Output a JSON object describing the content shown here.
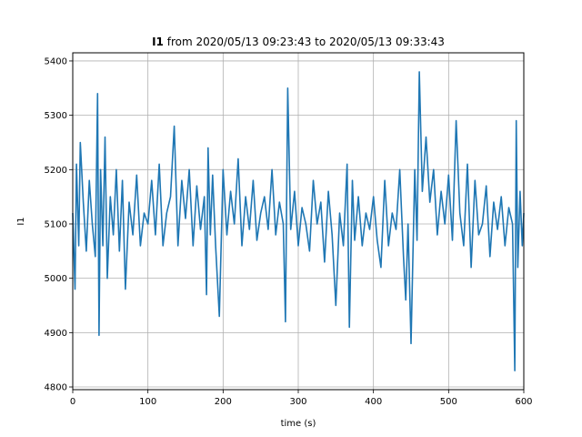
{
  "chart_data": {
    "type": "line",
    "title_bold": "I1",
    "title_rest": " from 2020/05/13 09:23:43 to 2020/05/13 09:33:43",
    "xlabel": "time (s)",
    "ylabel": "I1",
    "xlim": [
      0,
      600
    ],
    "ylim": [
      4795,
      5415
    ],
    "xticks": [
      0,
      100,
      200,
      300,
      400,
      500,
      600
    ],
    "yticks": [
      4800,
      4900,
      5000,
      5100,
      5200,
      5300,
      5400
    ],
    "grid": true,
    "line_color": "#1f77b4",
    "series": [
      {
        "x": [
          0,
          3,
          5,
          8,
          10,
          14,
          18,
          22,
          26,
          30,
          33,
          35,
          37,
          40,
          43,
          46,
          50,
          54,
          58,
          62,
          66,
          70,
          75,
          80,
          85,
          90,
          95,
          100,
          105,
          110,
          115,
          120,
          125,
          130,
          135,
          140,
          145,
          150,
          155,
          160,
          165,
          170,
          175,
          178,
          180,
          183,
          186,
          190,
          195,
          200,
          205,
          210,
          215,
          220,
          225,
          230,
          235,
          240,
          245,
          250,
          255,
          260,
          265,
          270,
          275,
          280,
          283,
          286,
          290,
          295,
          300,
          305,
          310,
          315,
          320,
          325,
          330,
          335,
          340,
          345,
          350,
          355,
          360,
          365,
          368,
          372,
          375,
          380,
          385,
          390,
          395,
          400,
          405,
          410,
          415,
          420,
          425,
          430,
          435,
          440,
          443,
          446,
          450,
          455,
          458,
          461,
          465,
          470,
          475,
          480,
          485,
          490,
          495,
          500,
          505,
          510,
          515,
          520,
          525,
          530,
          535,
          540,
          545,
          550,
          555,
          560,
          565,
          570,
          575,
          580,
          585,
          588,
          590,
          592,
          595,
          598,
          600
        ],
        "y": [
          5120,
          4980,
          5210,
          5060,
          5250,
          5140,
          5050,
          5180,
          5100,
          5040,
          5340,
          4895,
          5200,
          5060,
          5260,
          5000,
          5150,
          5080,
          5200,
          5050,
          5180,
          4980,
          5140,
          5080,
          5190,
          5060,
          5120,
          5100,
          5180,
          5080,
          5210,
          5060,
          5120,
          5150,
          5280,
          5060,
          5180,
          5110,
          5200,
          5060,
          5170,
          5090,
          5150,
          4970,
          5240,
          5080,
          5190,
          5060,
          4930,
          5200,
          5080,
          5160,
          5100,
          5220,
          5060,
          5150,
          5090,
          5180,
          5070,
          5120,
          5150,
          5090,
          5200,
          5080,
          5140,
          5100,
          4920,
          5350,
          5090,
          5160,
          5060,
          5130,
          5100,
          5050,
          5180,
          5100,
          5140,
          5030,
          5160,
          5080,
          4950,
          5120,
          5060,
          5210,
          4910,
          5180,
          5070,
          5150,
          5060,
          5120,
          5090,
          5150,
          5070,
          5020,
          5180,
          5060,
          5120,
          5090,
          5200,
          5040,
          4960,
          5100,
          4880,
          5200,
          5070,
          5380,
          5160,
          5260,
          5140,
          5200,
          5080,
          5160,
          5100,
          5190,
          5070,
          5290,
          5120,
          5060,
          5210,
          5020,
          5180,
          5080,
          5100,
          5170,
          5040,
          5140,
          5090,
          5150,
          5060,
          5130,
          5100,
          4830,
          5290,
          5020,
          5160,
          5060,
          5120
        ]
      }
    ]
  }
}
